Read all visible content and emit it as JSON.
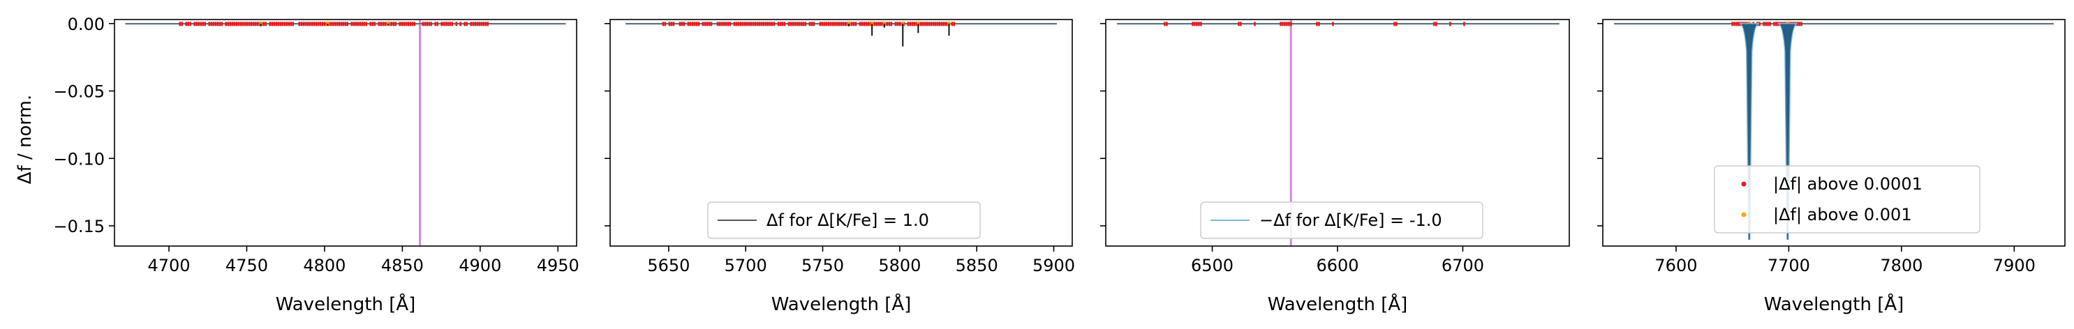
{
  "figure": {
    "ylabel": "Δf / norm.",
    "xlabel": "Wavelength [Å]"
  },
  "chart_data": [
    {
      "type": "line",
      "panel": 1,
      "xlim": [
        4665,
        4962
      ],
      "ylim": [
        -0.165,
        0.003
      ],
      "xticks": [
        4700,
        4750,
        4800,
        4850,
        4900,
        4950
      ],
      "yticks": [
        0.0,
        -0.05,
        -0.1,
        -0.15
      ],
      "ytick_labels": [
        "0.00",
        "−0.05",
        "−0.10",
        "−0.15"
      ],
      "xlabel": "Wavelength [Å]",
      "ylabel": "Δf / norm.",
      "vline": 4861.3,
      "baseline_range": [
        4672,
        4955
      ],
      "red_markers_range": [
        4707,
        4905
      ],
      "dips": [
        [
          4759,
          -0.002
        ],
        [
          4802,
          -0.0015
        ],
        [
          4841,
          -0.0012
        ]
      ],
      "legend": []
    },
    {
      "type": "line",
      "panel": 2,
      "xlim": [
        5612,
        5912
      ],
      "ylim": [
        -0.165,
        0.003
      ],
      "xticks": [
        5650,
        5700,
        5750,
        5800,
        5850,
        5900
      ],
      "yticks": [
        0.0,
        -0.05,
        -0.1,
        -0.15
      ],
      "xlabel": "Wavelength [Å]",
      "baseline_range": [
        5622,
        5902
      ],
      "red_markers_range": [
        5645,
        5837
      ],
      "dips": [
        [
          5782,
          -0.009
        ],
        [
          5802,
          -0.017
        ],
        [
          5812,
          -0.007
        ],
        [
          5832,
          -0.009
        ],
        [
          5790,
          -0.003
        ],
        [
          5767,
          -0.002
        ]
      ],
      "legend": [
        {
          "line_color": "#555555",
          "label": "Δf for Δ[K/Fe] = 1.0"
        }
      ]
    },
    {
      "type": "line",
      "panel": 3,
      "xlim": [
        6415,
        6785
      ],
      "ylim": [
        -0.165,
        0.003
      ],
      "xticks": [
        6500,
        6600,
        6700
      ],
      "yticks": [
        0.0,
        -0.05,
        -0.1,
        -0.15
      ],
      "xlabel": "Wavelength [Å]",
      "vline": 6562.8,
      "baseline_range": [
        6424,
        6777
      ],
      "red_markers_range": [
        6462,
        6738
      ],
      "dips": [],
      "legend": [
        {
          "line_color": "#7fb7d9",
          "label": "−Δf for Δ[K/Fe] = -1.0"
        }
      ]
    },
    {
      "type": "line",
      "panel": 4,
      "xlim": [
        7535,
        7945
      ],
      "ylim": [
        -0.165,
        0.003
      ],
      "xticks": [
        7600,
        7700,
        7800,
        7900
      ],
      "yticks": [
        0.0,
        -0.05,
        -0.1,
        -0.15
      ],
      "xlabel": "Wavelength [Å]",
      "baseline_range": [
        7545,
        7935
      ],
      "red_markers_range": [
        7648,
        7712
      ],
      "dips": [
        [
          7664.9,
          -0.16
        ],
        [
          7699.0,
          -0.16
        ]
      ],
      "legend": [
        {
          "marker_color": "#e41a1c",
          "label": "|Δf| above 0.0001"
        },
        {
          "marker_color": "#ffa500",
          "label": "|Δf| above 0.001"
        }
      ]
    }
  ],
  "colors": {
    "kfe_plus": "#555555",
    "kfe_minus": "#7fb7d9",
    "dip_fill": "#1f5f8b",
    "marker_1e4": "#e41a1c",
    "marker_1e3": "#ffa500",
    "vline": "#d08ad8"
  }
}
